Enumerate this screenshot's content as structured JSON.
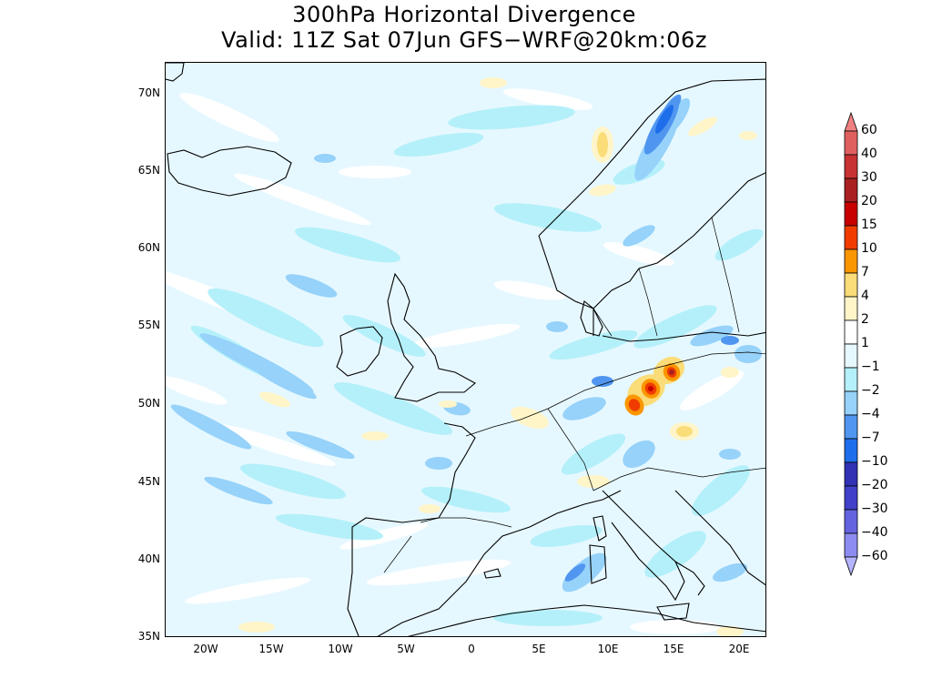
{
  "title": {
    "line1": "300hPa Horizontal Divergence",
    "line2": "Valid: 11Z Sat 07Jun GFS−WRF@20km:06z"
  },
  "axes": {
    "lat_ticks": [
      "70N",
      "65N",
      "60N",
      "55N",
      "50N",
      "45N",
      "40N",
      "35N"
    ],
    "lon_ticks": [
      "20W",
      "15W",
      "10W",
      "5W",
      "0",
      "5E",
      "10E",
      "15E",
      "20E"
    ],
    "lon_range": [
      -23,
      22
    ],
    "lat_range": [
      35,
      72
    ]
  },
  "colorbar": {
    "labels": [
      "60",
      "40",
      "30",
      "20",
      "15",
      "10",
      "7",
      "4",
      "2",
      "1",
      "−1",
      "−2",
      "−4",
      "−7",
      "−10",
      "−20",
      "−30",
      "−40",
      "−60"
    ],
    "colors": [
      "#f08080",
      "#e06060",
      "#c83232",
      "#a82020",
      "#c80000",
      "#f03c00",
      "#fa9600",
      "#fadc78",
      "#fff5c8",
      "#ffffff",
      "#e6f8ff",
      "#b4f0fa",
      "#96d2fa",
      "#5096f0",
      "#1e6eeb",
      "#3232b4",
      "#4040c8",
      "#6464e0",
      "#8c8cf0",
      "#b4b4ff"
    ]
  },
  "colors": {
    "background": "#e6f8ff",
    "coastline": "#000000"
  }
}
